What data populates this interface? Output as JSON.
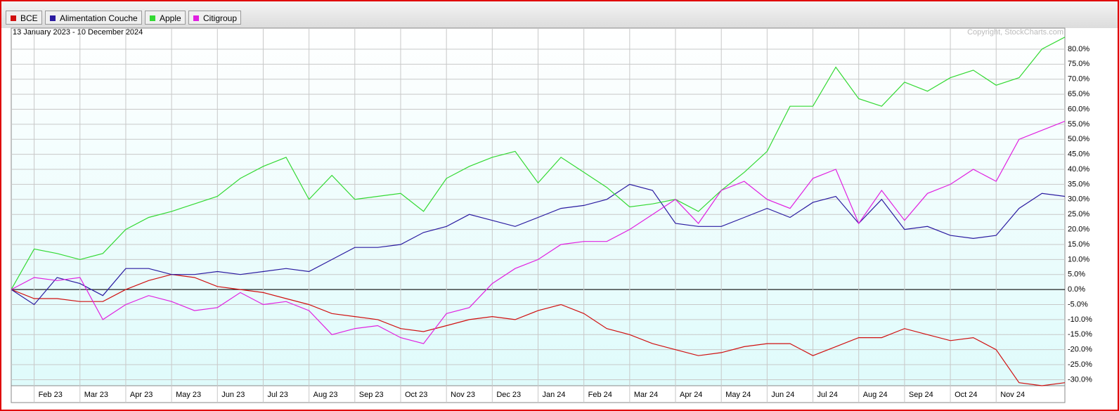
{
  "chart_data": {
    "type": "line",
    "subtitle": "13 January 2023 - 10 December 2024",
    "annotation": "Copyright, StockCharts.com",
    "categories": [
      null,
      "Feb 23",
      null,
      "Mar 23",
      null,
      "Apr 23",
      null,
      "May 23",
      null,
      "Jun 23",
      null,
      "Jul 23",
      null,
      "Aug 23",
      null,
      "Sep 23",
      null,
      "Oct 23",
      null,
      "Nov 23",
      null,
      "Dec 23",
      null,
      "Jan 24",
      null,
      "Feb 24",
      null,
      "Mar 24",
      null,
      "Apr 24",
      null,
      "May 24",
      null,
      "Jun 24",
      null,
      "Jul 24",
      null,
      "Aug 24",
      null,
      "Sep 24",
      null,
      "Oct 24",
      null,
      "Nov 24",
      null,
      null,
      null
    ],
    "series": [
      {
        "name": "BCE",
        "color": "#d01010",
        "values": [
          0,
          -3,
          -3,
          -4,
          -4,
          0,
          3,
          5,
          4,
          1,
          0,
          -1,
          -3,
          -5,
          -8,
          -9,
          -10,
          -13,
          -14,
          -12,
          -10,
          -9,
          -10,
          -7,
          -5,
          -8,
          -13,
          -15,
          -18,
          -20,
          -22,
          -21,
          -19,
          -18,
          -18,
          -22,
          -19,
          -16,
          -16,
          -13,
          -15,
          -17,
          -16,
          -20,
          -31,
          -32,
          -31
        ]
      },
      {
        "name": "Alimentation Couche",
        "color": "#2a1aa0",
        "values": [
          0,
          -5,
          4,
          2,
          -2,
          7,
          7,
          5,
          5,
          6,
          5,
          6,
          7,
          6,
          10,
          14,
          14,
          15,
          19,
          21,
          25,
          23,
          21,
          24,
          27,
          28,
          30,
          35,
          33,
          22,
          21,
          21,
          24,
          27,
          24,
          29,
          31,
          22,
          30,
          20,
          21,
          18,
          17,
          18,
          27,
          32,
          31
        ]
      },
      {
        "name": "Apple",
        "color": "#33d933",
        "values": [
          0,
          13.5,
          12,
          10,
          12,
          20,
          24,
          26,
          28.5,
          31,
          37,
          41,
          44,
          30,
          38,
          30,
          31,
          32,
          26,
          37,
          41,
          44,
          46,
          35.5,
          44,
          39,
          34,
          27.5,
          28.5,
          30,
          26,
          33,
          39,
          46,
          61,
          61,
          74,
          63.5,
          61,
          69,
          66,
          70.5,
          73,
          68,
          70.5,
          80,
          84
        ]
      },
      {
        "name": "Citigroup",
        "color": "#e020e0",
        "values": [
          0,
          4,
          3,
          4,
          -10,
          -5,
          -2,
          -4,
          -7,
          -6,
          -1,
          -5,
          -4,
          -7,
          -15,
          -13,
          -12,
          -16,
          -18,
          -8,
          -6,
          2,
          7,
          10,
          15,
          16,
          16,
          20,
          25,
          30,
          22,
          33,
          36,
          30,
          27,
          37,
          40,
          22,
          33,
          23,
          32,
          35,
          40,
          36,
          50,
          53,
          56
        ]
      }
    ],
    "ylim": [
      -32,
      87
    ],
    "yticks": [
      {
        "value": -30,
        "label": "-30.0%"
      },
      {
        "value": -25,
        "label": "-25.0%"
      },
      {
        "value": -20,
        "label": "-20.0%"
      },
      {
        "value": -15,
        "label": "-15.0%"
      },
      {
        "value": -10,
        "label": "-10.0%"
      },
      {
        "value": -5,
        "label": "-5.0%"
      },
      {
        "value": 0,
        "label": "0.0%"
      },
      {
        "value": 5,
        "label": "5.0%"
      },
      {
        "value": 10,
        "label": "10.0%"
      },
      {
        "value": 15,
        "label": "15.0%"
      },
      {
        "value": 20,
        "label": "20.0%"
      },
      {
        "value": 25,
        "label": "25.0%"
      },
      {
        "value": 30,
        "label": "30.0%"
      },
      {
        "value": 35,
        "label": "35.0%"
      },
      {
        "value": 40,
        "label": "40.0%"
      },
      {
        "value": 45,
        "label": "45.0%"
      },
      {
        "value": 50,
        "label": "50.0%"
      },
      {
        "value": 55,
        "label": "55.0%"
      },
      {
        "value": 60,
        "label": "60.0%"
      },
      {
        "value": 65,
        "label": "65.0%"
      },
      {
        "value": 70,
        "label": "70.0%"
      },
      {
        "value": 75,
        "label": "75.0%"
      },
      {
        "value": 80,
        "label": "80.0%"
      }
    ],
    "grid": true
  }
}
